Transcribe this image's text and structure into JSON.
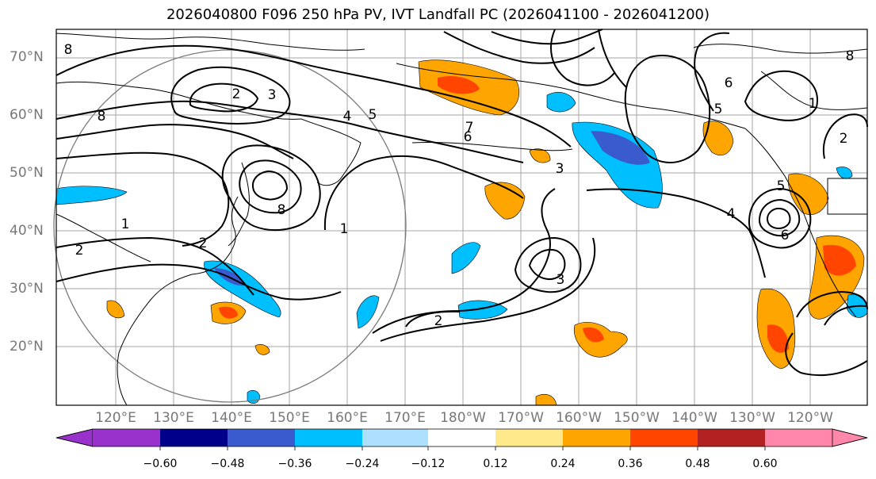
{
  "title": "2026040800 F096 250 hPa PV, IVT Landfall PC (2026041100 - 2026041200)",
  "map": {
    "lat_labels": [
      "70°N",
      "60°N",
      "50°N",
      "40°N",
      "30°N",
      "20°N"
    ],
    "lon_labels": [
      "120°E",
      "130°E",
      "140°E",
      "150°E",
      "160°E",
      "170°E",
      "180°W",
      "170°W",
      "160°W",
      "150°W",
      "140°W",
      "130°W",
      "120°W"
    ],
    "contour_labels": [
      "8",
      "2",
      "3",
      "8",
      "4",
      "5",
      "7",
      "6",
      "8",
      "3",
      "1",
      "1",
      "2",
      "2",
      "3",
      "2",
      "6",
      "5",
      "1",
      "2",
      "4",
      "5",
      "6",
      "8"
    ]
  },
  "colorbar": {
    "ticks": [
      "−0.60",
      "−0.48",
      "−0.36",
      "−0.24",
      "−0.12",
      "0.12",
      "0.24",
      "0.36",
      "0.48",
      "0.60"
    ],
    "colors": [
      "#9932CC",
      "#00008B",
      "#3A5BCD",
      "#00BFFF",
      "#ADDFFF",
      "#FFFFFF",
      "#FFE98A",
      "#FFA500",
      "#FF4500",
      "#B22222",
      "#FF88AA"
    ]
  }
}
